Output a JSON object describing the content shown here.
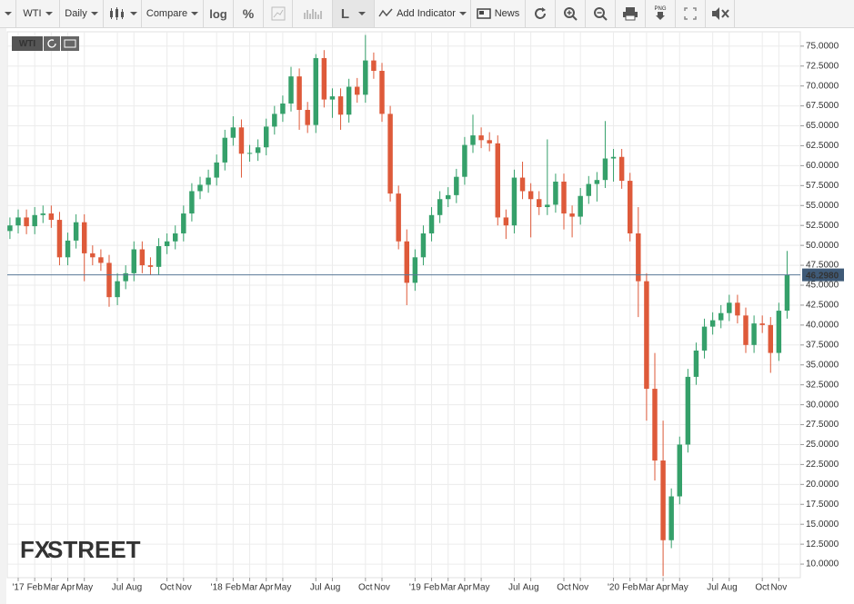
{
  "toolbar": {
    "symbol": "WTI",
    "interval": "Daily",
    "compare": "Compare",
    "log": "log",
    "percent": "%",
    "chart_style": "L",
    "add_indicator": "Add Indicator",
    "news": "News",
    "png": "PNG"
  },
  "chart_data": {
    "type": "candlestick",
    "symbol": "WTI",
    "watermark": [
      "FX",
      "STREET"
    ],
    "colors": {
      "up": "#35a06a",
      "down": "#de5a3a"
    },
    "xlim": [
      -0.66,
      47.3
    ],
    "ylim": [
      8.3,
      76.8
    ],
    "grid": true,
    "xticks": [
      {
        "value": 0,
        "label": "'17"
      },
      {
        "value": 1,
        "label": "Feb"
      },
      {
        "value": 2,
        "label": "Mar"
      },
      {
        "value": 3,
        "label": "Apr"
      },
      {
        "value": 4,
        "label": "May"
      },
      {
        "value": 6,
        "label": "Jul"
      },
      {
        "value": 7,
        "label": "Aug"
      },
      {
        "value": 9,
        "label": "Oct"
      },
      {
        "value": 10,
        "label": "Nov"
      },
      {
        "value": 12,
        "label": "'18"
      },
      {
        "value": 13,
        "label": "Feb"
      },
      {
        "value": 14,
        "label": "Mar"
      },
      {
        "value": 15,
        "label": "Apr"
      },
      {
        "value": 16,
        "label": "May"
      },
      {
        "value": 18,
        "label": "Jul"
      },
      {
        "value": 19,
        "label": "Aug"
      },
      {
        "value": 21,
        "label": "Oct"
      },
      {
        "value": 22,
        "label": "Nov"
      },
      {
        "value": 24,
        "label": "'19"
      },
      {
        "value": 25,
        "label": "Feb"
      },
      {
        "value": 26,
        "label": "Mar"
      },
      {
        "value": 27,
        "label": "Apr"
      },
      {
        "value": 28,
        "label": "May"
      },
      {
        "value": 30,
        "label": "Jul"
      },
      {
        "value": 31,
        "label": "Aug"
      },
      {
        "value": 33,
        "label": "Oct"
      },
      {
        "value": 34,
        "label": "Nov"
      },
      {
        "value": 36,
        "label": "'20"
      },
      {
        "value": 37,
        "label": "Feb"
      },
      {
        "value": 38,
        "label": "Mar"
      },
      {
        "value": 39,
        "label": "Apr"
      },
      {
        "value": 40,
        "label": "May"
      },
      {
        "value": 42,
        "label": "Jul"
      },
      {
        "value": 43,
        "label": "Aug"
      },
      {
        "value": 45,
        "label": "Oct"
      },
      {
        "value": 46,
        "label": "Nov"
      }
    ],
    "yticks": [
      {
        "value": 10,
        "label": "10.0000"
      },
      {
        "value": 12.5,
        "label": "12.5000"
      },
      {
        "value": 15,
        "label": "15.0000"
      },
      {
        "value": 17.5,
        "label": "17.5000"
      },
      {
        "value": 20,
        "label": "20.0000"
      },
      {
        "value": 22.5,
        "label": "22.5000"
      },
      {
        "value": 25,
        "label": "25.0000"
      },
      {
        "value": 27.5,
        "label": "27.5000"
      },
      {
        "value": 30,
        "label": "30.0000"
      },
      {
        "value": 32.5,
        "label": "32.5000"
      },
      {
        "value": 35,
        "label": "35.0000"
      },
      {
        "value": 37.5,
        "label": "37.5000"
      },
      {
        "value": 40,
        "label": "40.0000"
      },
      {
        "value": 42.5,
        "label": "42.5000"
      },
      {
        "value": 45,
        "label": "45.0000"
      },
      {
        "value": 47.5,
        "label": "47.5000"
      },
      {
        "value": 50,
        "label": "50.0000"
      },
      {
        "value": 52.5,
        "label": "52.5000"
      },
      {
        "value": 55,
        "label": "55.0000"
      },
      {
        "value": 57.5,
        "label": "57.5000"
      },
      {
        "value": 60,
        "label": "60.0000"
      },
      {
        "value": 62.5,
        "label": "62.5000"
      },
      {
        "value": 65,
        "label": "65.0000"
      },
      {
        "value": 67.5,
        "label": "67.5000"
      },
      {
        "value": 70,
        "label": "70.0000"
      },
      {
        "value": 72.5,
        "label": "72.5000"
      },
      {
        "value": 75,
        "label": "75.0000"
      }
    ],
    "last_price": {
      "value": 46.298,
      "label": "46.2980"
    },
    "x": [
      -0.5,
      0,
      0.5,
      1,
      1.5,
      2,
      2.5,
      3,
      3.5,
      4,
      4.5,
      5,
      5.5,
      6,
      6.5,
      7,
      7.5,
      8,
      8.5,
      9,
      9.5,
      10,
      10.5,
      11,
      11.5,
      12,
      12.5,
      13,
      13.5,
      14,
      14.5,
      15,
      15.5,
      16,
      16.5,
      17,
      17.5,
      18,
      18.5,
      19,
      19.5,
      20,
      20.5,
      21,
      21.5,
      22,
      22.5,
      23,
      23.5,
      24,
      24.5,
      25,
      25.5,
      26,
      26.5,
      27,
      27.5,
      28,
      28.5,
      29,
      29.5,
      30,
      30.5,
      31,
      31.5,
      32,
      32.5,
      33,
      33.5,
      34,
      34.5,
      35,
      35.5,
      36,
      36.5,
      37,
      37.5,
      38,
      38.5,
      39,
      39.5,
      40,
      40.5,
      41,
      41.5,
      42,
      42.5,
      43,
      43.5,
      44,
      44.5,
      45,
      45.5,
      46,
      46.5
    ],
    "open": [
      51.8,
      52.5,
      53.5,
      52.4,
      53.8,
      54.0,
      53.2,
      48.5,
      50.6,
      52.9,
      49.0,
      48.5,
      47.8,
      43.5,
      45.5,
      46.5,
      49.5,
      47.5,
      47.3,
      49.9,
      50.5,
      51.5,
      54.0,
      56.8,
      57.6,
      58.5,
      60.4,
      63.5,
      64.8,
      61.5,
      61.6,
      62.3,
      64.9,
      66.5,
      67.8,
      71.2,
      67.0,
      65.1,
      73.5,
      68.3,
      68.7,
      66.4,
      69.9,
      68.9,
      73.2,
      71.9,
      66.5,
      56.5,
      50.5,
      45.3,
      48.5,
      51.5,
      53.8,
      55.8,
      56.3,
      58.6,
      62.6,
      63.8,
      63.2,
      62.8,
      53.5,
      52.5,
      58.5,
      56.8,
      55.8,
      54.8,
      55.1,
      58.0,
      54.0,
      53.6,
      56.2,
      57.7,
      58.2,
      60.9,
      61.1,
      58.1,
      51.5,
      45.5,
      32.0,
      23.0,
      13.0,
      18.5,
      25.0,
      33.5,
      36.8,
      39.8,
      40.6,
      41.5,
      42.8,
      41.2,
      37.5,
      40.2,
      40.0,
      36.5,
      41.8
    ],
    "high": [
      53.5,
      54.5,
      54.5,
      54.8,
      55.0,
      55.0,
      54.2,
      51.6,
      53.9,
      53.9,
      50.0,
      49.5,
      48.8,
      46.5,
      47.5,
      50.5,
      50.5,
      48.5,
      50.9,
      51.5,
      52.5,
      55.0,
      57.8,
      58.6,
      59.5,
      61.4,
      64.5,
      66.2,
      65.8,
      62.6,
      63.3,
      65.9,
      67.5,
      68.8,
      72.4,
      72.2,
      68.0,
      74.0,
      74.5,
      69.7,
      69.7,
      70.9,
      71.0,
      76.4,
      74.2,
      72.9,
      67.5,
      57.5,
      52.0,
      49.5,
      52.5,
      54.8,
      56.8,
      57.3,
      59.6,
      63.6,
      66.4,
      64.8,
      64.2,
      63.8,
      54.5,
      59.5,
      60.5,
      57.8,
      56.8,
      63.3,
      59.0,
      59.0,
      55.0,
      57.2,
      58.7,
      59.2,
      65.6,
      62.1,
      62.1,
      59.1,
      54.8,
      46.5,
      36.5,
      28.0,
      19.5,
      26.0,
      34.5,
      37.8,
      40.8,
      41.6,
      42.5,
      43.8,
      43.8,
      42.2,
      41.2,
      41.2,
      41.0,
      42.8,
      49.3
    ],
    "low": [
      50.8,
      51.5,
      51.4,
      51.4,
      52.8,
      52.2,
      47.5,
      47.5,
      49.6,
      45.5,
      47.5,
      46.8,
      42.3,
      42.5,
      44.5,
      45.5,
      46.5,
      46.3,
      46.3,
      48.9,
      49.5,
      50.5,
      53.0,
      55.8,
      56.6,
      57.5,
      59.4,
      62.5,
      58.5,
      60.5,
      60.6,
      61.3,
      63.9,
      65.5,
      66.8,
      64.5,
      64.1,
      64.1,
      67.3,
      66.0,
      64.5,
      65.4,
      67.9,
      67.9,
      70.9,
      65.5,
      55.5,
      49.5,
      42.5,
      44.3,
      47.5,
      50.5,
      52.8,
      54.8,
      55.3,
      57.6,
      61.6,
      62.2,
      61.8,
      52.5,
      50.8,
      51.5,
      55.8,
      51.0,
      53.8,
      53.8,
      54.1,
      52.0,
      51.0,
      52.6,
      55.2,
      55.5,
      57.2,
      58.0,
      57.1,
      50.5,
      41.0,
      28.0,
      20.5,
      8.5,
      12.0,
      17.5,
      24.0,
      32.5,
      35.8,
      38.8,
      39.6,
      40.5,
      40.2,
      36.5,
      36.5,
      39.0,
      34.0,
      35.5,
      40.8
    ],
    "close": [
      52.5,
      53.5,
      52.4,
      53.8,
      54.0,
      53.2,
      48.5,
      50.6,
      52.9,
      49.0,
      48.5,
      47.8,
      43.5,
      45.5,
      46.5,
      49.5,
      47.5,
      47.3,
      49.9,
      50.5,
      51.5,
      54.0,
      56.8,
      57.6,
      58.5,
      60.4,
      63.5,
      64.8,
      61.5,
      61.6,
      62.3,
      64.9,
      66.5,
      67.8,
      71.2,
      67.0,
      65.1,
      73.5,
      68.3,
      68.7,
      66.4,
      69.9,
      68.9,
      73.2,
      71.9,
      66.5,
      56.5,
      50.5,
      45.3,
      48.5,
      51.5,
      53.8,
      55.8,
      56.3,
      58.6,
      62.6,
      63.8,
      63.2,
      62.8,
      53.5,
      52.5,
      58.5,
      56.8,
      55.8,
      54.8,
      55.1,
      58.0,
      54.0,
      53.6,
      56.2,
      57.7,
      58.2,
      60.9,
      61.1,
      58.1,
      51.5,
      45.5,
      32.0,
      23.0,
      13.0,
      18.5,
      25.0,
      33.5,
      36.8,
      39.8,
      40.6,
      41.5,
      42.8,
      41.2,
      37.5,
      40.2,
      40.0,
      36.5,
      41.8,
      46.3
    ]
  }
}
